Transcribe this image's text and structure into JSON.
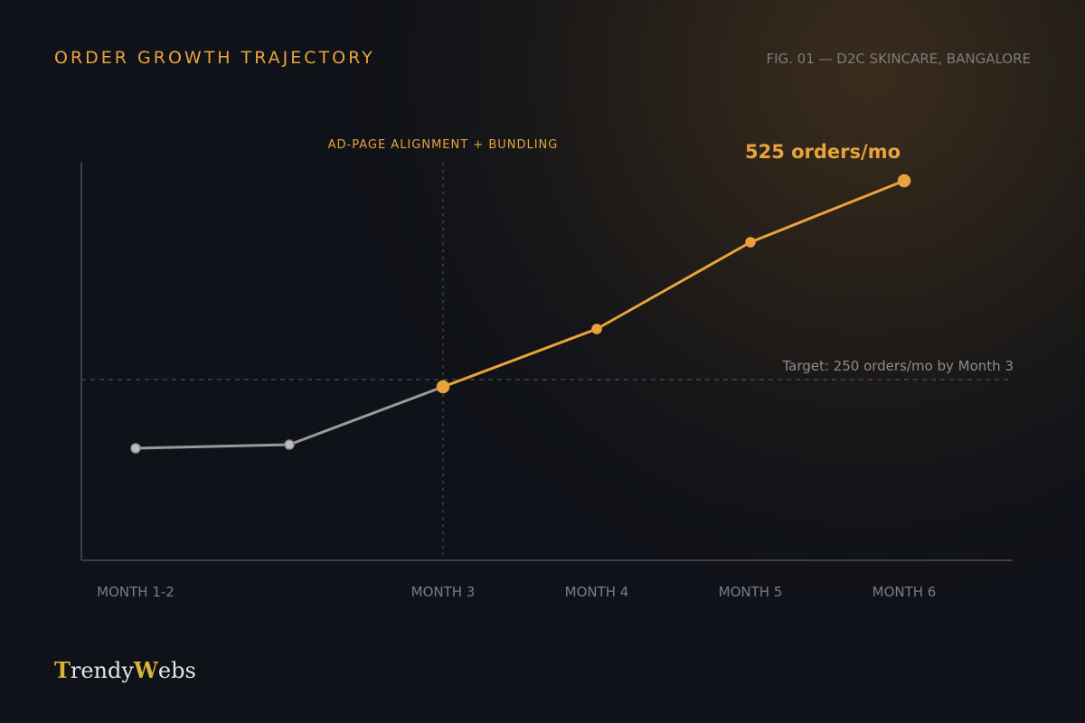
{
  "chart_data": {
    "type": "line",
    "title": "ORDER GROWTH TRAJECTORY",
    "subtitle": "FIG. 01 — D2C SKINCARE, BANGALORE",
    "categories": [
      "MONTH 1-2",
      null,
      "MONTH 3",
      "MONTH 4",
      "MONTH 5",
      "MONTH 6"
    ],
    "values": [
      155,
      160,
      240,
      320,
      440,
      525
    ],
    "value_labels": [
      null,
      null,
      null,
      null,
      null,
      "525 orders/mo"
    ],
    "color": "#e8a33d",
    "before_color": "#9a9a9a",
    "ylim": [
      0,
      550
    ],
    "annotation": {
      "label": "AD-PAGE ALIGNMENT + BUNDLING",
      "category": "MONTH 3"
    },
    "target": {
      "label": "Target: 250 orders/mo by Month 3",
      "value": 250
    },
    "brand": [
      "T",
      "rendy",
      "W",
      "ebs"
    ]
  }
}
